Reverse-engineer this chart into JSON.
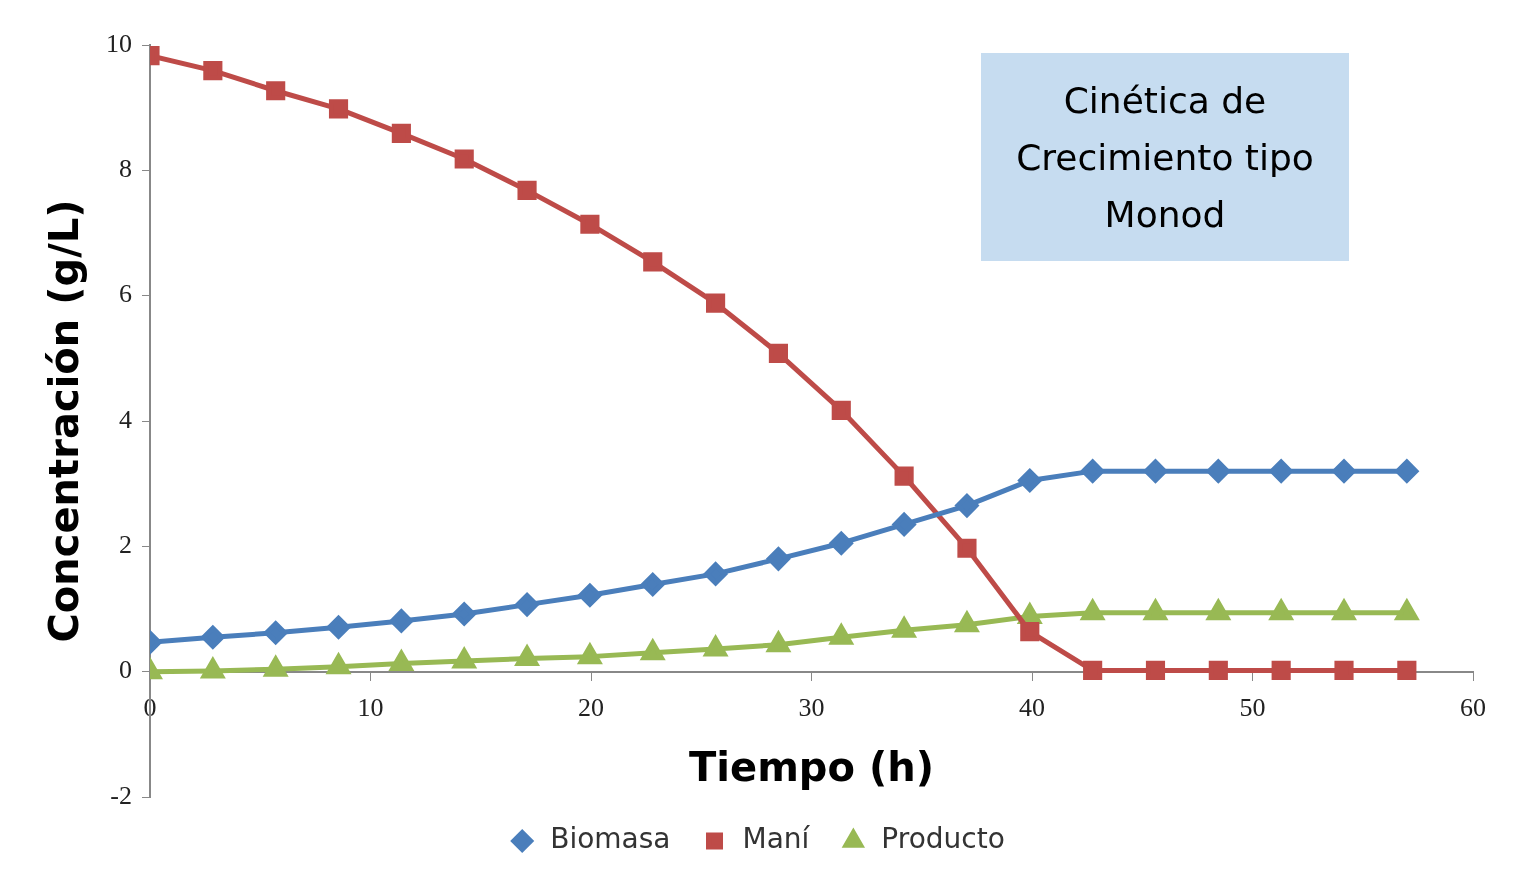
{
  "chart_data": {
    "type": "line",
    "xlabel": "Tiempo (h)",
    "ylabel": "Concentración (g/L)",
    "x": [
      0,
      2.85,
      5.7,
      8.55,
      11.4,
      14.25,
      17.1,
      19.95,
      22.8,
      25.65,
      28.5,
      31.35,
      34.2,
      37.05,
      39.9,
      42.75,
      45.6,
      48.45,
      51.3,
      54.15,
      57
    ],
    "series": [
      {
        "name": "Biomasa",
        "color": "#4a7ebb",
        "marker": "diamond",
        "values": [
          0.47,
          0.55,
          0.62,
          0.71,
          0.81,
          0.92,
          1.07,
          1.22,
          1.39,
          1.56,
          1.8,
          2.05,
          2.35,
          2.65,
          3.05,
          3.2,
          3.2,
          3.2,
          3.2,
          3.2,
          3.2
        ]
      },
      {
        "name": "Maní",
        "color": "#be4b48",
        "marker": "square",
        "values": [
          9.83,
          9.59,
          9.27,
          8.98,
          8.59,
          8.18,
          7.68,
          7.14,
          6.54,
          5.88,
          5.08,
          4.17,
          3.12,
          1.97,
          0.64,
          0.02,
          0.02,
          0.02,
          0.02,
          0.02,
          0.02
        ]
      },
      {
        "name": "Producto",
        "color": "#98b954",
        "marker": "triangle",
        "values": [
          0,
          0.01,
          0.04,
          0.08,
          0.13,
          0.17,
          0.21,
          0.24,
          0.3,
          0.36,
          0.43,
          0.55,
          0.66,
          0.75,
          0.88,
          0.94,
          0.94,
          0.94,
          0.94,
          0.94,
          0.94
        ]
      }
    ],
    "xlim": [
      0,
      60
    ],
    "xticks": [
      0,
      10,
      20,
      30,
      40,
      50,
      60
    ],
    "ylim": [
      -2,
      10
    ],
    "yticks": [
      -2,
      0,
      2,
      4,
      6,
      8,
      10
    ],
    "grid": false,
    "legend": "bottom",
    "annotations": [
      "Cinética de Crecimiento tipo Monod"
    ]
  }
}
